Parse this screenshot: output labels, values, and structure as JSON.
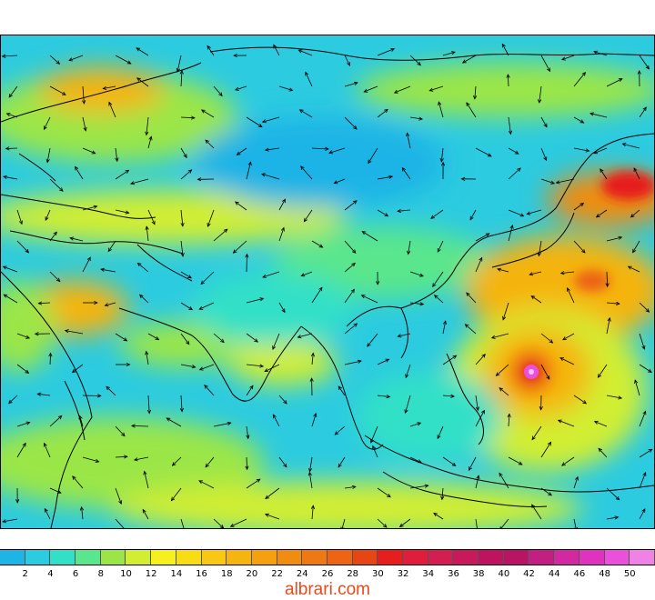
{
  "map": {
    "description_colors": {
      "ocean_low": "#19c6e6",
      "land_mid": "#7fe35a",
      "high": "#f5b400",
      "peak": "#e81e64"
    }
  },
  "legend": {
    "colors": [
      "#1eb4e6",
      "#2ccbe0",
      "#32e0c8",
      "#5ae68c",
      "#9be646",
      "#d2ee32",
      "#f5f01e",
      "#f8dc14",
      "#f8c814",
      "#f5b40f",
      "#f5a00f",
      "#f08c0f",
      "#ef7812",
      "#ec6414",
      "#e64614",
      "#e61e1e",
      "#e01e3c",
      "#d21e50",
      "#c8195a",
      "#be145f",
      "#b91464",
      "#c31e82",
      "#d228a0",
      "#e032be",
      "#eb50dc",
      "#f082e6"
    ],
    "tick_labels": [
      "2",
      "4",
      "6",
      "8",
      "10",
      "12",
      "14",
      "16",
      "18",
      "20",
      "22",
      "24",
      "26",
      "28",
      "30",
      "32",
      "34",
      "36",
      "38",
      "40",
      "42",
      "44",
      "46",
      "48",
      "50"
    ]
  },
  "watermark": "albrari.com"
}
